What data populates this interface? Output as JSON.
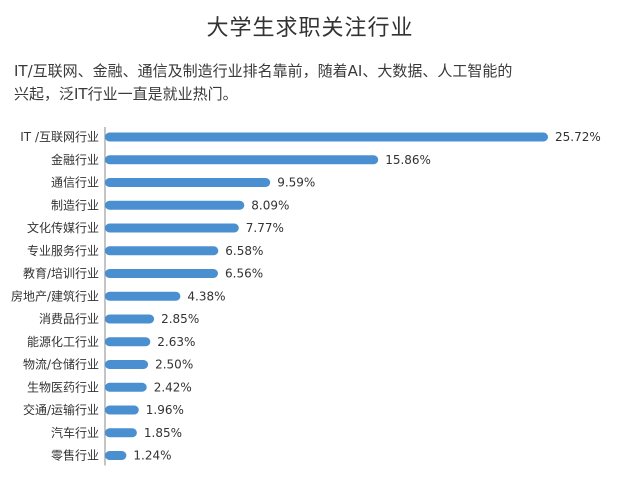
{
  "header": {
    "title": "大学生求职关注行业",
    "subtitle_line1": "IT/互联网、金融、通信及制造行业排名靠前，随着AI、大数据、人工智能的",
    "subtitle_line2": "兴起，泛IT行业一直是就业热门。"
  },
  "colors": {
    "bar": "#4a90d0",
    "axis": "#8a8a8a",
    "text": "#333333"
  },
  "chart_data": {
    "type": "bar",
    "orientation": "horizontal",
    "title": "大学生求职关注行业",
    "categories": [
      "IT /互联网行业",
      "金融行业",
      "通信行业",
      "制造行业",
      "文化传媒行业",
      "专业服务行业",
      "教育/培训行业",
      "房地产/建筑行业",
      "消费品行业",
      "能源化工行业",
      "物流/仓储行业",
      "生物医药行业",
      "交通/运输行业",
      "汽车行业",
      "零售行业"
    ],
    "values": [
      25.72,
      15.86,
      9.59,
      8.09,
      7.77,
      6.58,
      6.56,
      4.38,
      2.85,
      2.63,
      2.5,
      2.42,
      1.96,
      1.85,
      1.24
    ],
    "value_labels": [
      "25.72%",
      "15.86%",
      "9.59%",
      "8.09%",
      "7.77%",
      "6.58%",
      "6.56%",
      "4.38%",
      "2.85%",
      "2.63%",
      "2.50%",
      "2.42%",
      "1.96%",
      "1.85%",
      "1.24%"
    ],
    "unit": "%",
    "xlim": [
      0,
      25.72
    ],
    "grid": false,
    "legend": "none"
  }
}
